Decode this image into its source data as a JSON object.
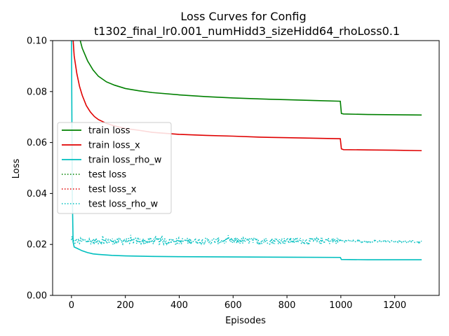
{
  "chart_data": {
    "type": "line",
    "title": "Loss Curves for Config",
    "subtitle": "t1302_final_lr0.001_numHidd3_sizeHidd64_rhoLoss0.1",
    "xlabel": "Episodes",
    "ylabel": "Loss",
    "xlim": [
      -70,
      1365
    ],
    "ylim": [
      0.0,
      0.1
    ],
    "xticks": [
      0,
      200,
      400,
      600,
      800,
      1000,
      1200
    ],
    "xtick_labels": [
      "0",
      "200",
      "400",
      "600",
      "800",
      "1000",
      "1200"
    ],
    "yticks": [
      0.0,
      0.02,
      0.04,
      0.06,
      0.08,
      0.1
    ],
    "ytick_labels": [
      "0.00",
      "0.02",
      "0.04",
      "0.06",
      "0.08",
      "0.10"
    ],
    "grid": false,
    "legend_position": "center-left",
    "series": [
      {
        "name": "train loss",
        "color": "#008000",
        "style": "solid",
        "points": [
          [
            0,
            0.13
          ],
          [
            20,
            0.108
          ],
          [
            30,
            0.101
          ],
          [
            40,
            0.097
          ],
          [
            60,
            0.092
          ],
          [
            80,
            0.0885
          ],
          [
            100,
            0.086
          ],
          [
            130,
            0.0838
          ],
          [
            160,
            0.0825
          ],
          [
            200,
            0.0812
          ],
          [
            250,
            0.0803
          ],
          [
            300,
            0.0796
          ],
          [
            400,
            0.0787
          ],
          [
            500,
            0.078
          ],
          [
            600,
            0.0775
          ],
          [
            700,
            0.0771
          ],
          [
            800,
            0.0768
          ],
          [
            900,
            0.0765
          ],
          [
            998,
            0.0762
          ],
          [
            1002,
            0.0714
          ],
          [
            1010,
            0.0712
          ],
          [
            1100,
            0.071
          ],
          [
            1200,
            0.0709
          ],
          [
            1300,
            0.0708
          ]
        ]
      },
      {
        "name": "train loss_x",
        "color": "#e00000",
        "style": "solid",
        "points": [
          [
            0,
            0.11
          ],
          [
            10,
            0.094
          ],
          [
            20,
            0.087
          ],
          [
            30,
            0.082
          ],
          [
            40,
            0.0785
          ],
          [
            55,
            0.0745
          ],
          [
            70,
            0.072
          ],
          [
            85,
            0.0702
          ],
          [
            100,
            0.069
          ],
          [
            130,
            0.0675
          ],
          [
            160,
            0.0665
          ],
          [
            200,
            0.0655
          ],
          [
            250,
            0.0648
          ],
          [
            300,
            0.064
          ],
          [
            400,
            0.0632
          ],
          [
            500,
            0.0628
          ],
          [
            600,
            0.0625
          ],
          [
            700,
            0.0621
          ],
          [
            800,
            0.0619
          ],
          [
            900,
            0.0617
          ],
          [
            998,
            0.0615
          ],
          [
            1002,
            0.0575
          ],
          [
            1010,
            0.0572
          ],
          [
            1100,
            0.0571
          ],
          [
            1200,
            0.057
          ],
          [
            1300,
            0.0568
          ]
        ]
      },
      {
        "name": "train loss_rho_w",
        "color": "#00bfbf",
        "style": "solid",
        "points": [
          [
            0,
            0.102
          ],
          [
            3,
            0.04
          ],
          [
            6,
            0.021
          ],
          [
            10,
            0.019
          ],
          [
            20,
            0.0185
          ],
          [
            40,
            0.0175
          ],
          [
            60,
            0.0168
          ],
          [
            80,
            0.0163
          ],
          [
            100,
            0.0161
          ],
          [
            150,
            0.0157
          ],
          [
            200,
            0.0155
          ],
          [
            300,
            0.0153
          ],
          [
            400,
            0.0152
          ],
          [
            600,
            0.0151
          ],
          [
            800,
            0.015
          ],
          [
            998,
            0.0149
          ],
          [
            1002,
            0.0141
          ],
          [
            1100,
            0.014
          ],
          [
            1300,
            0.014
          ]
        ]
      },
      {
        "name": "test loss",
        "color": "#008000",
        "style": "dotted",
        "points": []
      },
      {
        "name": "test loss_x",
        "color": "#e00000",
        "style": "dotted",
        "points": []
      },
      {
        "name": "test loss_rho_w",
        "color": "#00bfbf",
        "style": "dotted",
        "points": [
          [
            0,
            0.0213
          ],
          [
            100,
            0.0213
          ],
          [
            200,
            0.0213
          ],
          [
            300,
            0.0213
          ],
          [
            400,
            0.0213
          ],
          [
            500,
            0.0214
          ],
          [
            600,
            0.0214
          ],
          [
            700,
            0.0214
          ],
          [
            800,
            0.0214
          ],
          [
            900,
            0.0214
          ],
          [
            1000,
            0.0214
          ],
          [
            1100,
            0.0212
          ],
          [
            1200,
            0.0211
          ],
          [
            1300,
            0.0211
          ]
        ],
        "noise": {
          "x_range": [
            0,
            1000
          ],
          "amplitude": 0.0013,
          "after_amplitude": 0.0004
        }
      }
    ]
  }
}
